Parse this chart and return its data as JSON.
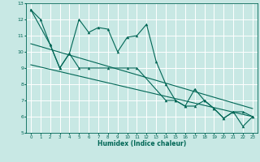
{
  "xlabel": "Humidex (Indice chaleur)",
  "ylabel": "",
  "xlim": [
    -0.5,
    23.5
  ],
  "ylim": [
    5,
    13
  ],
  "yticks": [
    5,
    6,
    7,
    8,
    9,
    10,
    11,
    12,
    13
  ],
  "xticks": [
    0,
    1,
    2,
    3,
    4,
    5,
    6,
    7,
    8,
    9,
    10,
    11,
    12,
    13,
    14,
    15,
    16,
    17,
    18,
    19,
    20,
    21,
    22,
    23
  ],
  "bg_color": "#c8e8e4",
  "grid_color": "#ffffff",
  "line_color": "#006655",
  "lines": [
    {
      "x": [
        0,
        1,
        2,
        3,
        4,
        5,
        6,
        7,
        8,
        9,
        10,
        11,
        12,
        13,
        14,
        15,
        16,
        17,
        18,
        19,
        20,
        21,
        22,
        23
      ],
      "y": [
        12.6,
        12.0,
        10.45,
        9.0,
        9.9,
        12.0,
        11.2,
        11.5,
        11.4,
        10.0,
        10.9,
        11.0,
        11.7,
        9.4,
        8.0,
        7.0,
        6.65,
        7.7,
        7.0,
        6.5,
        5.9,
        6.3,
        5.4,
        6.0
      ],
      "marker": "^",
      "markersize": 2.5
    },
    {
      "x": [
        0,
        2,
        3,
        4,
        5,
        6,
        8,
        10,
        11,
        14,
        15,
        16,
        17,
        18,
        19,
        20,
        21,
        22,
        23
      ],
      "y": [
        12.6,
        10.45,
        9.0,
        9.9,
        9.0,
        9.0,
        9.0,
        9.0,
        9.0,
        7.0,
        7.0,
        6.65,
        6.65,
        7.0,
        6.5,
        5.9,
        6.3,
        6.3,
        6.0
      ],
      "marker": "^",
      "markersize": 2.5
    },
    {
      "x": [
        0,
        23
      ],
      "y": [
        10.5,
        6.5
      ],
      "marker": null,
      "markersize": 0
    },
    {
      "x": [
        0,
        23
      ],
      "y": [
        9.2,
        6.0
      ],
      "marker": null,
      "markersize": 0
    }
  ]
}
